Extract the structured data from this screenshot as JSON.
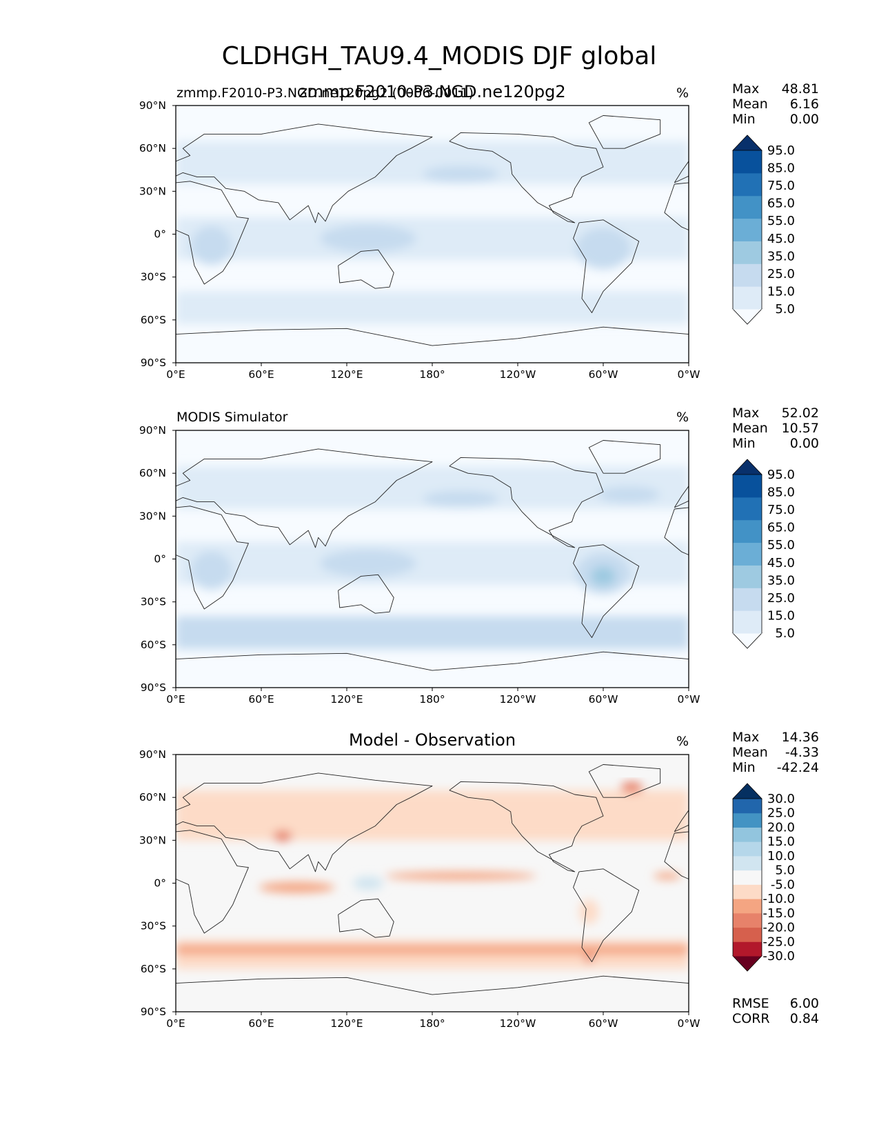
{
  "figure_title": "CLDHGH_TAU9.4_MODIS DJF global",
  "colors": {
    "seq": [
      "#f7fbff",
      "#deebf7",
      "#c6dbef",
      "#9ecae1",
      "#6baed6",
      "#4292c6",
      "#2171b5",
      "#08519c",
      "#08306b"
    ],
    "div_pos": [
      "#f7f7f7",
      "#d1e5f0",
      "#b5d7ea",
      "#92c5de",
      "#4393c3",
      "#2166ac",
      "#053061"
    ],
    "div_neg": [
      "#fddbc7",
      "#f4a582",
      "#e7826a",
      "#d6604d",
      "#b2182b",
      "#67001f"
    ]
  },
  "panels": [
    {
      "title_left": "zmmp.F2010-P3.NGD.ne120pg2 (0006-0011)",
      "title_center": "zmmp.F2010-P3.NGD.ne120pg2",
      "units": "%",
      "stats": {
        "max_label": "Max",
        "max": "48.81",
        "mean_label": "Mean",
        "mean": "6.16",
        "min_label": "Min",
        "min": "0.00"
      },
      "colorbar": {
        "scheme": "seq",
        "levels": [
          "5.0",
          "15.0",
          "25.0",
          "35.0",
          "45.0",
          "55.0",
          "65.0",
          "75.0",
          "85.0",
          "95.0"
        ]
      }
    },
    {
      "title_left": "MODIS Simulator",
      "title_center": "",
      "units": "%",
      "stats": {
        "max_label": "Max",
        "max": "52.02",
        "mean_label": "Mean",
        "mean": "10.57",
        "min_label": "Min",
        "min": "0.00"
      },
      "colorbar": {
        "scheme": "seq",
        "levels": [
          "5.0",
          "15.0",
          "25.0",
          "35.0",
          "45.0",
          "55.0",
          "65.0",
          "75.0",
          "85.0",
          "95.0"
        ]
      }
    },
    {
      "title_left": "",
      "title_center": "Model - Observation",
      "units": "%",
      "stats": {
        "max_label": "Max",
        "max": "14.36",
        "mean_label": "Mean",
        "mean": "-4.33",
        "min_label": "Min",
        "min": "-42.24"
      },
      "colorbar": {
        "scheme": "div",
        "levels": [
          "-30.0",
          "-25.0",
          "-20.0",
          "-15.0",
          "-10.0",
          "-5.0",
          "5.0",
          "10.0",
          "15.0",
          "20.0",
          "25.0",
          "30.0"
        ]
      },
      "extra": {
        "rmse_label": "RMSE",
        "rmse": "6.00",
        "corr_label": "CORR",
        "corr": "0.84"
      }
    }
  ],
  "chart_data": {
    "type": "heatmap",
    "projection": "PlateCarree",
    "variable": "CLDHGH_TAU9.4_MODIS",
    "season": "DJF",
    "units": "%",
    "x_ticks": [
      "0°E",
      "60°E",
      "120°E",
      "180°",
      "120°W",
      "60°W",
      "0°W"
    ],
    "y_ticks": [
      "90°N",
      "60°N",
      "30°N",
      "0°",
      "30°S",
      "60°S",
      "90°S"
    ],
    "xlim": [
      0,
      360
    ],
    "ylim": [
      -90,
      90
    ],
    "series": [
      {
        "name": "zmmp.F2010-P3.NGD.ne120pg2",
        "max": 48.81,
        "mean": 6.16,
        "min": 0.0
      },
      {
        "name": "MODIS Simulator",
        "max": 52.02,
        "mean": 10.57,
        "min": 0.0
      },
      {
        "name": "Model - Observation",
        "max": 14.36,
        "mean": -4.33,
        "min": -42.24,
        "rmse": 6.0,
        "corr": 0.84
      }
    ]
  }
}
